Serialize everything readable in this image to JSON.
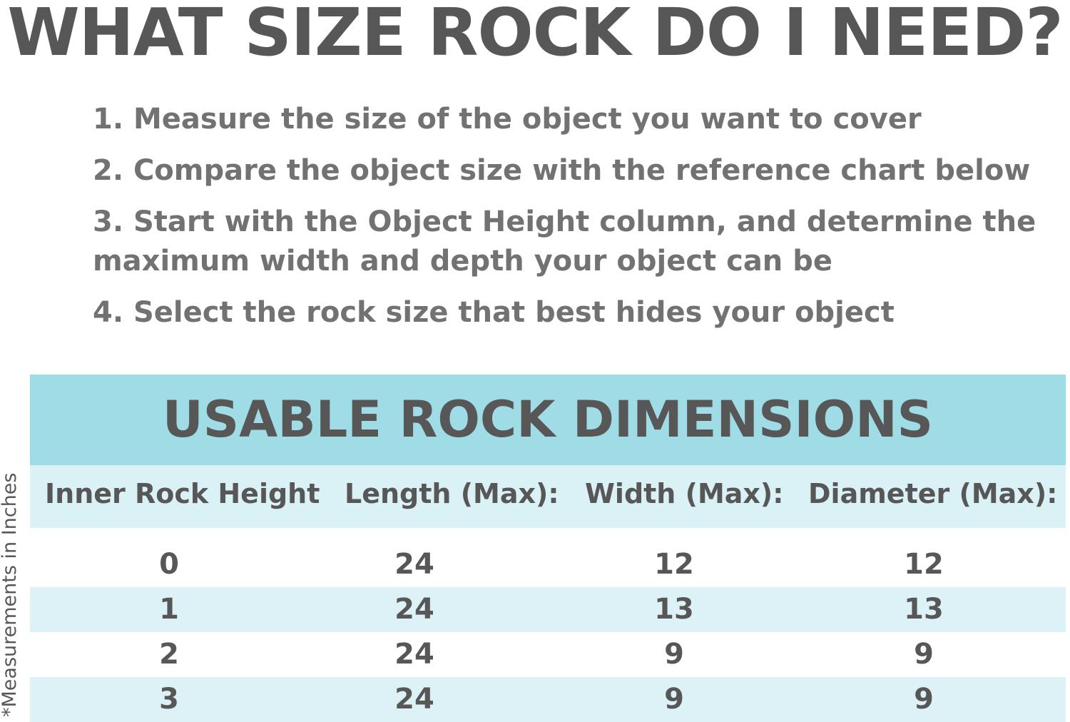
{
  "title": "WHAT SIZE ROCK DO I NEED?",
  "steps": [
    "1. Measure the size of the object you want to cover",
    "2. Compare the object size with the reference chart below",
    "3. Start with the Object Height column, and determine the maximum width and depth your object can be",
    "4. Select the rock size that best hides your object"
  ],
  "table": {
    "title": "USABLE ROCK DIMENSIONS",
    "headers": [
      "Inner Rock Height",
      "Length (Max):",
      "Width (Max):",
      "Diameter (Max):"
    ],
    "rows": [
      [
        "0",
        "24",
        "12",
        "12"
      ],
      [
        "1",
        "24",
        "13",
        "13"
      ],
      [
        "2",
        "24",
        "9",
        "9"
      ],
      [
        "3",
        "24",
        "9",
        "9"
      ]
    ]
  },
  "side_note": "*Measurements in Inches",
  "colors": {
    "banner": "#a0dce6",
    "stripe": "#dcf2f6",
    "text": "#575757"
  }
}
